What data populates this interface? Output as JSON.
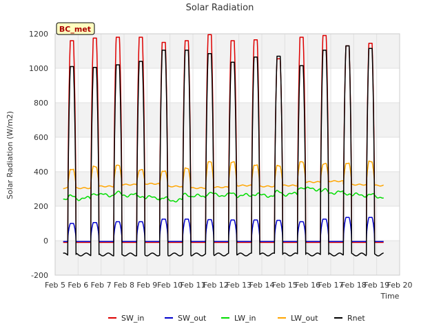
{
  "chart_data": {
    "type": "line",
    "title": "Solar Radiation",
    "xlabel": "Time",
    "ylabel": "Solar Radiation (W/m2)",
    "station_label": "BC_met",
    "xlim": [
      5,
      20
    ],
    "ylim": [
      -200,
      1200
    ],
    "x_ticks": [
      {
        "value": 5,
        "label": "Feb 5"
      },
      {
        "value": 6,
        "label": "Feb 6"
      },
      {
        "value": 7,
        "label": "Feb 7"
      },
      {
        "value": 8,
        "label": "Feb 8"
      },
      {
        "value": 9,
        "label": "Feb 9"
      },
      {
        "value": 10,
        "label": "Feb 10"
      },
      {
        "value": 11,
        "label": "Feb 11"
      },
      {
        "value": 12,
        "label": "Feb 12"
      },
      {
        "value": 13,
        "label": "Feb 13"
      },
      {
        "value": 14,
        "label": "Feb 14"
      },
      {
        "value": 15,
        "label": "Feb 15"
      },
      {
        "value": 16,
        "label": "Feb 16"
      },
      {
        "value": 17,
        "label": "Feb 17"
      },
      {
        "value": 18,
        "label": "Feb 18"
      },
      {
        "value": 19,
        "label": "Feb 19"
      },
      {
        "value": 20,
        "label": "Feb 20"
      }
    ],
    "y_ticks": [
      {
        "value": -200,
        "label": "-200"
      },
      {
        "value": 0,
        "label": "0"
      },
      {
        "value": 200,
        "label": "200"
      },
      {
        "value": 400,
        "label": "400"
      },
      {
        "value": 600,
        "label": "600"
      },
      {
        "value": 800,
        "label": "800"
      },
      {
        "value": 1000,
        "label": "1000"
      },
      {
        "value": 1200,
        "label": "1200"
      }
    ],
    "grid": true,
    "legend_position": "bottom",
    "series": [
      {
        "name": "SW_in",
        "color": "#dd0000",
        "daily_peaks": [
          1160,
          1175,
          1180,
          1180,
          1150,
          1160,
          1195,
          1160,
          1165,
          1055,
          1180,
          1190,
          1130,
          1145
        ],
        "night_value": -10
      },
      {
        "name": "SW_out",
        "color": "#0000cc",
        "daily_peaks": [
          100,
          105,
          110,
          110,
          125,
          125,
          122,
          120,
          120,
          118,
          110,
          125,
          135,
          135
        ],
        "night_value": -5
      },
      {
        "name": "LW_in",
        "color": "#00dd00",
        "daily_levels": [
          245,
          265,
          265,
          250,
          235,
          258,
          265,
          262,
          262,
          270,
          300,
          280,
          265,
          255
        ]
      },
      {
        "name": "LW_out",
        "color": "#ffa500",
        "daily_peaks": [
          415,
          430,
          435,
          410,
          405,
          420,
          455,
          455,
          440,
          435,
          455,
          445,
          450,
          460
        ],
        "night_levels": [
          305,
          315,
          325,
          330,
          315,
          305,
          310,
          320,
          315,
          320,
          340,
          345,
          325,
          320
        ]
      },
      {
        "name": "Rnet",
        "color": "#000000",
        "daily_peaks": [
          1010,
          1005,
          1020,
          1040,
          1105,
          1105,
          1085,
          1035,
          1065,
          1070,
          1015,
          1105,
          1130,
          1115
        ],
        "night_value": -80
      }
    ],
    "day_start": 5.55,
    "day_count": 14,
    "day_period": 1.0,
    "sunrise_offset": 0.0,
    "daylight_length": 0.36
  }
}
